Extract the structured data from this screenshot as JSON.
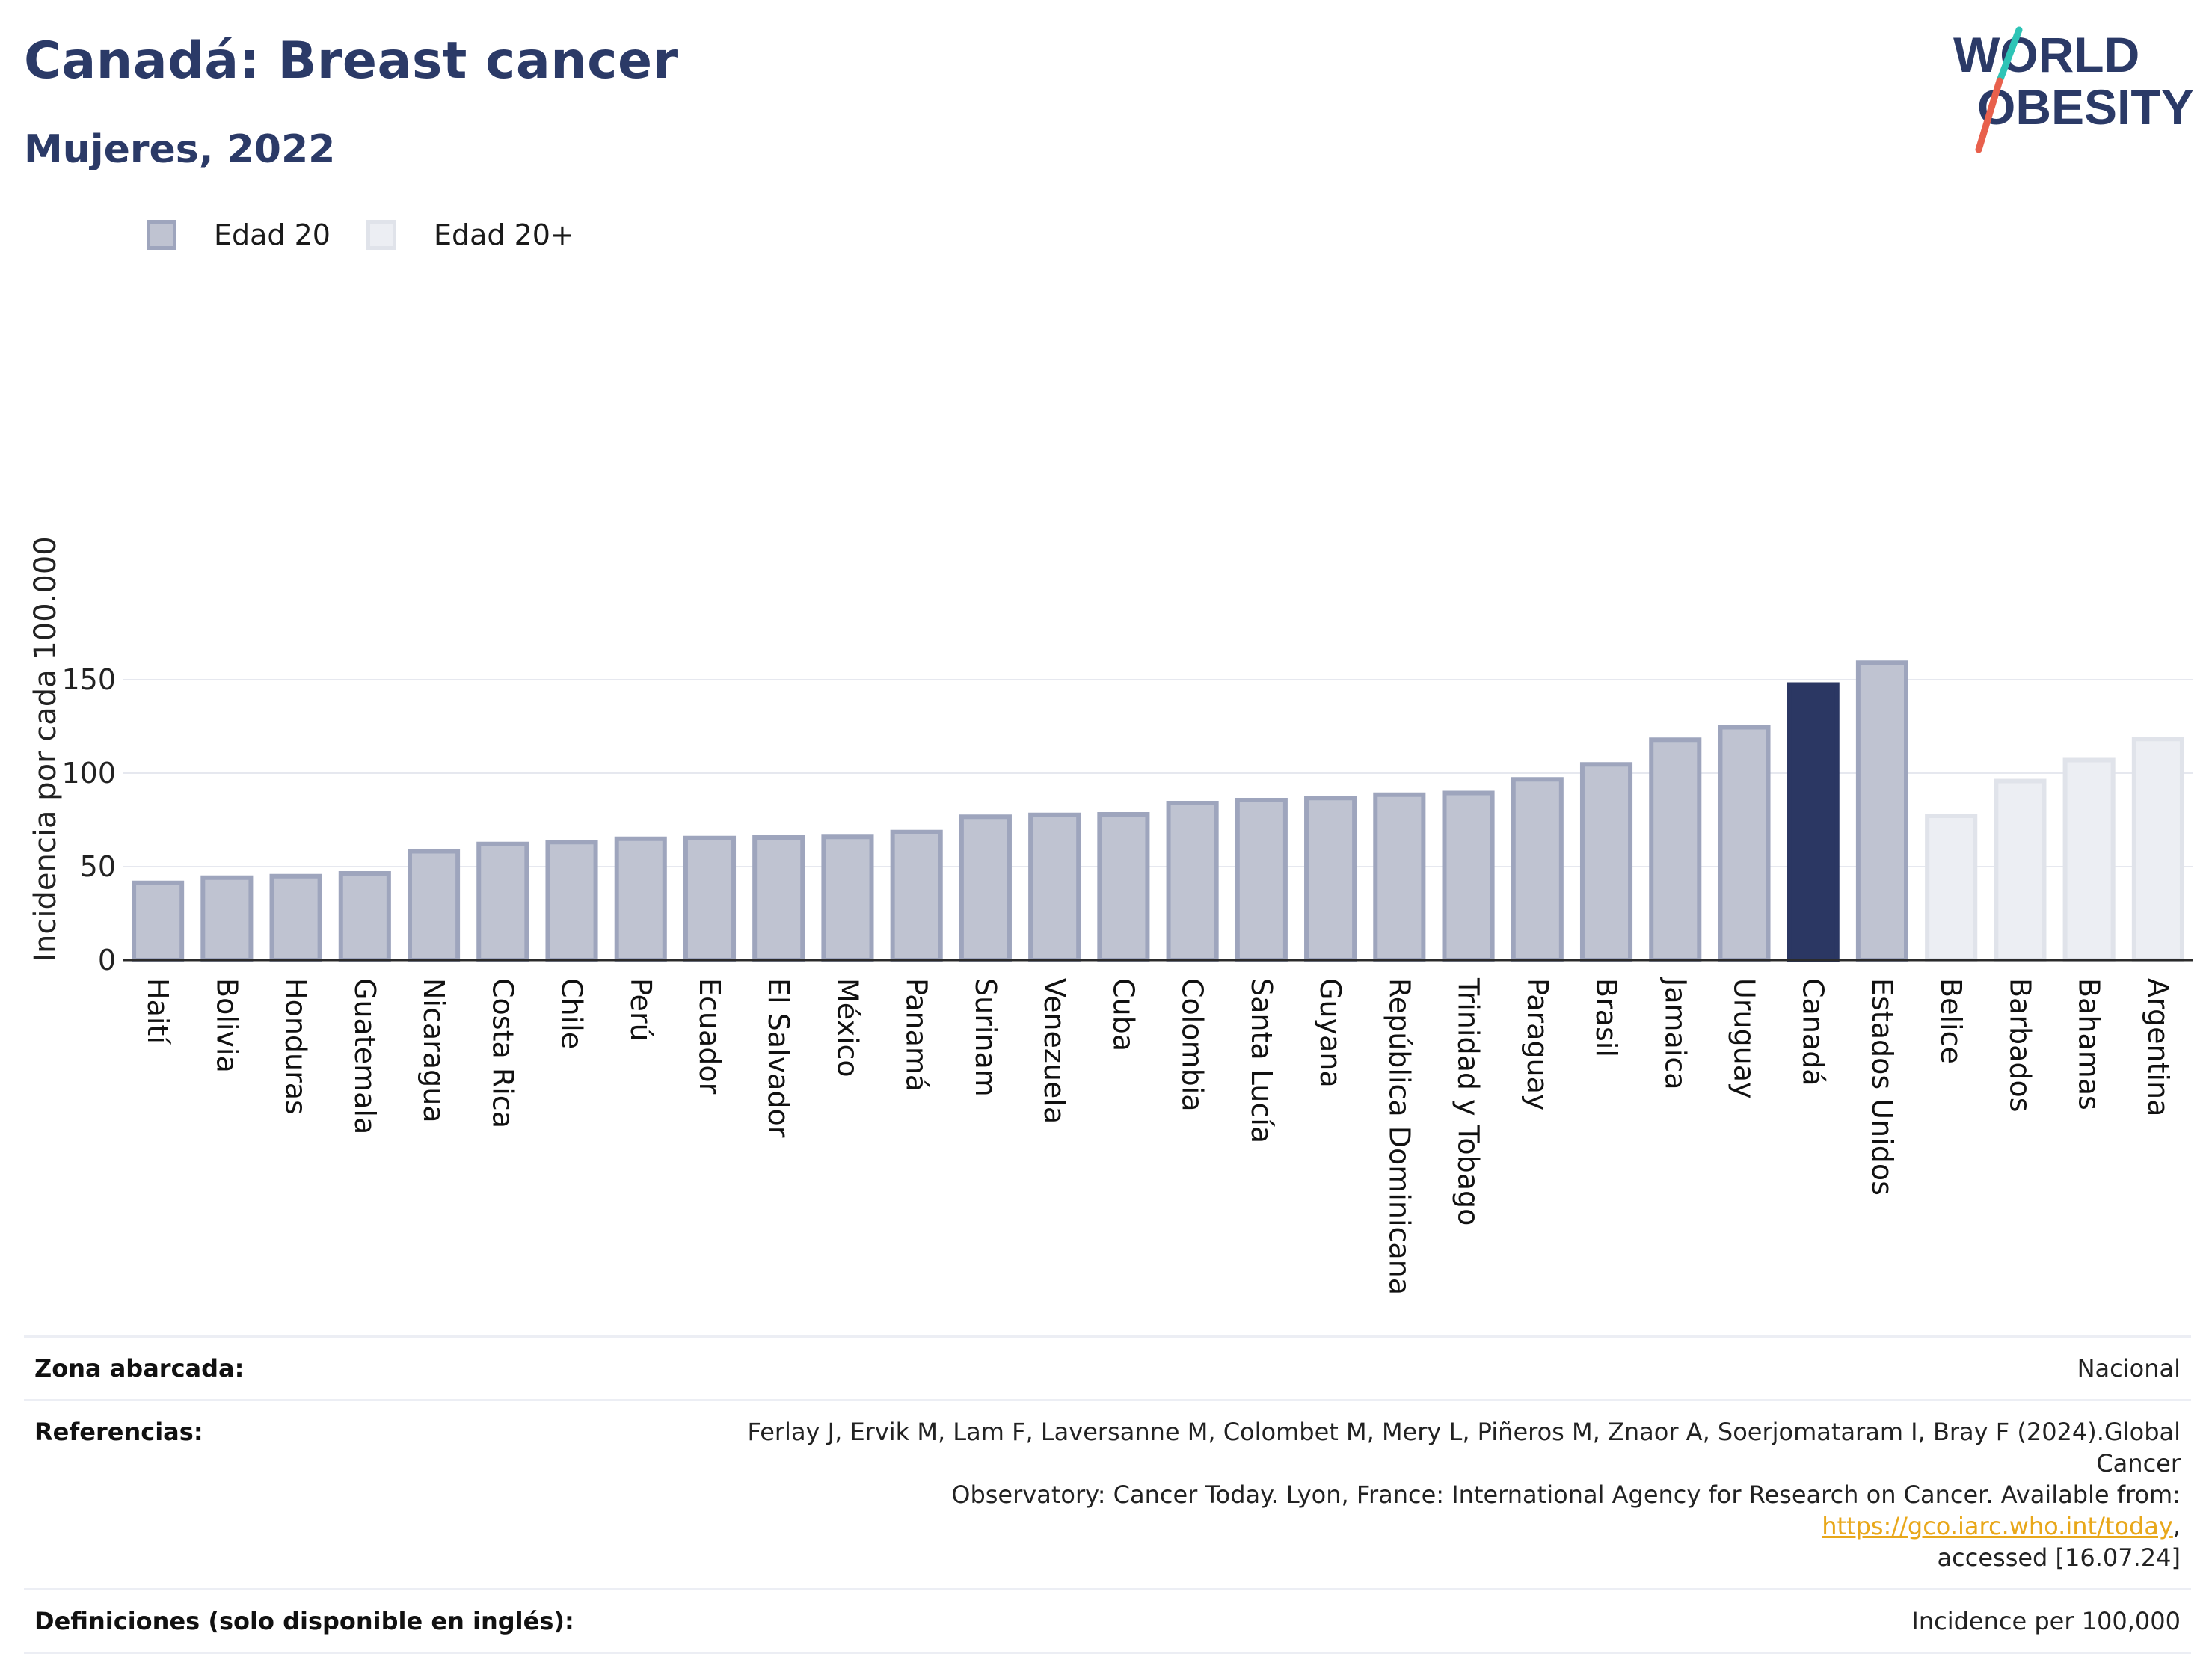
{
  "header": {
    "title": "Canadá: Breast cancer",
    "subtitle": "Mujeres, 2022"
  },
  "logo": {
    "line1": "WORLD",
    "line2": "OBESITY",
    "colors": {
      "text": "#2b3a67",
      "slash_top": "#2ec4b6",
      "slash_bottom": "#e8604c"
    }
  },
  "legend": {
    "items": [
      {
        "label": "Edad 20",
        "fill": "#bfc3d1",
        "border": "#9ea5bd"
      },
      {
        "label": "Edad 20+",
        "fill": "#eceef3",
        "border": "#e0e3ea"
      }
    ]
  },
  "chart_data": {
    "type": "bar",
    "ylabel": "Incidencia por cada 100.000",
    "xlabel": "",
    "ylim": [
      0,
      170
    ],
    "yticks": [
      0,
      50,
      100,
      150
    ],
    "grid": true,
    "legend_position": "top-left",
    "categories": [
      "Haití",
      "Bolivia",
      "Honduras",
      "Guatemala",
      "Nicaragua",
      "Costa Rica",
      "Chile",
      "Perú",
      "Ecuador",
      "El Salvador",
      "México",
      "Panamá",
      "Surinam",
      "Venezuela",
      "Cuba",
      "Colombia",
      "Santa Lucía",
      "Guyana",
      "República Dominicana",
      "Trinidad y Tobago",
      "Paraguay",
      "Brasil",
      "Jamaica",
      "Uruguay",
      "Canadá",
      "Estados Unidos",
      "Belice",
      "Barbados",
      "Bahamas",
      "Argentina"
    ],
    "values": [
      42.5,
      45.3,
      46.1,
      47.6,
      59.4,
      63.3,
      64.3,
      66.1,
      66.5,
      66.8,
      67.1,
      69.7,
      77.9,
      78.9,
      79.2,
      85.2,
      86.8,
      87.9,
      89.7,
      90.6,
      97.9,
      105.9,
      119.1,
      125.8,
      148.6,
      160.3,
      78.4,
      97.0,
      108.2,
      119.5
    ],
    "groups": [
      "Edad 20",
      "Edad 20",
      "Edad 20",
      "Edad 20",
      "Edad 20",
      "Edad 20",
      "Edad 20",
      "Edad 20",
      "Edad 20",
      "Edad 20",
      "Edad 20",
      "Edad 20",
      "Edad 20",
      "Edad 20",
      "Edad 20",
      "Edad 20",
      "Edad 20",
      "Edad 20",
      "Edad 20",
      "Edad 20",
      "Edad 20",
      "Edad 20",
      "Edad 20",
      "Edad 20",
      "Edad 20",
      "Edad 20",
      "Edad 20+",
      "Edad 20+",
      "Edad 20+",
      "Edad 20+"
    ],
    "highlight": "Canadá",
    "colors": {
      "Edad 20": {
        "fill": "#bfc3d1",
        "border": "#9ea5bd"
      },
      "Edad 20+": {
        "fill": "#eceef3",
        "border": "#e0e3ea"
      },
      "highlight": "#2b3763",
      "grid": "#e6e8ef",
      "axis": "#2b2b2b"
    }
  },
  "info": {
    "rows": [
      {
        "key": "Zona abarcada:",
        "value": "Nacional"
      },
      {
        "key": "Referencias:",
        "value_line1": "Ferlay J, Ervik M, Lam F, Laversanne M, Colombet M, Mery L, Piñeros M, Znaor A, Soerjomataram I, Bray F (2024).Global Cancer",
        "value_line2": "Observatory: Cancer Today. Lyon, France: International Agency for Research on Cancer. Available from: ",
        "link": "https://gco.iarc.who.int/today",
        "value_line2_end": ",",
        "value_line3": "accessed [16.07.24]"
      },
      {
        "key": "Definiciones (solo disponible en inglés):",
        "value": "Incidence per 100,000"
      }
    ]
  }
}
